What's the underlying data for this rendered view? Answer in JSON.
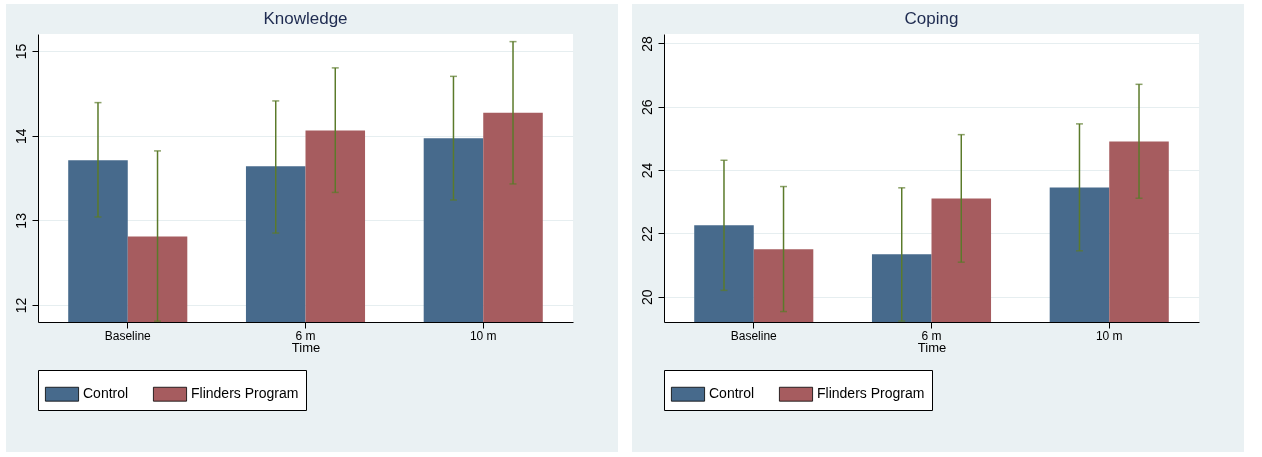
{
  "chart_data": [
    {
      "type": "bar",
      "title": "Knowledge",
      "xlabel": "Time",
      "categories": [
        "Baseline",
        "6 m",
        "10 m"
      ],
      "series": [
        {
          "name": "Control",
          "color": "#476a8c",
          "values": [
            13.71,
            13.64,
            13.97
          ],
          "errors": [
            [
              13.04,
              14.39
            ],
            [
              12.85,
              14.41
            ],
            [
              13.24,
              14.7
            ]
          ]
        },
        {
          "name": "Flinders Program",
          "color": "#a65c5f",
          "values": [
            12.81,
            14.06,
            14.27
          ],
          "errors": [
            [
              11.81,
              13.82
            ],
            [
              13.33,
              14.8
            ],
            [
              13.43,
              15.11
            ]
          ]
        }
      ],
      "ylim": [
        11.8,
        15.2
      ],
      "yticks": [
        12,
        13,
        14,
        15
      ],
      "grid": "y",
      "legend": "bottom"
    },
    {
      "type": "bar",
      "title": "Coping",
      "xlabel": "Time",
      "categories": [
        "Baseline",
        "6 m",
        "10 m"
      ],
      "series": [
        {
          "name": "Control",
          "color": "#476a8c",
          "values": [
            22.26,
            21.34,
            23.45
          ],
          "errors": [
            [
              20.2,
              24.31
            ],
            [
              19.23,
              23.44
            ],
            [
              21.45,
              25.46
            ]
          ]
        },
        {
          "name": "Flinders Program",
          "color": "#a65c5f",
          "values": [
            21.5,
            23.1,
            24.9
          ],
          "errors": [
            [
              19.53,
              23.48
            ],
            [
              21.09,
              25.12
            ],
            [
              23.11,
              26.71
            ]
          ]
        }
      ],
      "ylim": [
        19.2,
        28.3
      ],
      "yticks": [
        20,
        22,
        24,
        26,
        28
      ],
      "grid": "y",
      "legend": "bottom"
    }
  ]
}
